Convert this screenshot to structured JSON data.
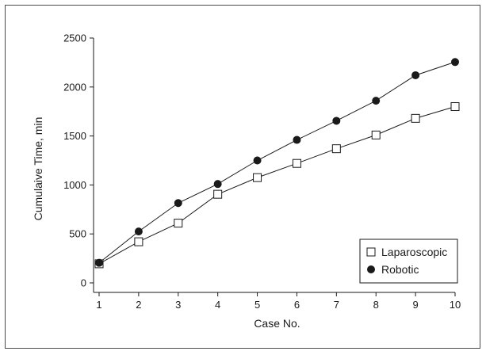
{
  "chart_data": {
    "type": "line",
    "title": "",
    "xlabel": "Case No.",
    "ylabel": "Cumulaive Time, min",
    "x": [
      1,
      2,
      3,
      4,
      5,
      6,
      7,
      8,
      9,
      10
    ],
    "xlim": [
      1,
      10
    ],
    "ylim": [
      0,
      2500
    ],
    "xticks": [
      1,
      2,
      3,
      4,
      5,
      6,
      7,
      8,
      9,
      10
    ],
    "yticks": [
      0,
      500,
      1000,
      1500,
      2000,
      2500
    ],
    "grid": false,
    "legend_position": "bottom-right",
    "series": [
      {
        "name": "Laparoscopic",
        "marker": "open-square",
        "color": "#1a1a1a",
        "values": [
          195,
          420,
          610,
          905,
          1075,
          1220,
          1370,
          1510,
          1680,
          1800
        ]
      },
      {
        "name": "Robotic",
        "marker": "filled-circle",
        "color": "#1a1a1a",
        "values": [
          205,
          525,
          815,
          1010,
          1250,
          1460,
          1655,
          1860,
          2120,
          2255
        ]
      }
    ]
  }
}
